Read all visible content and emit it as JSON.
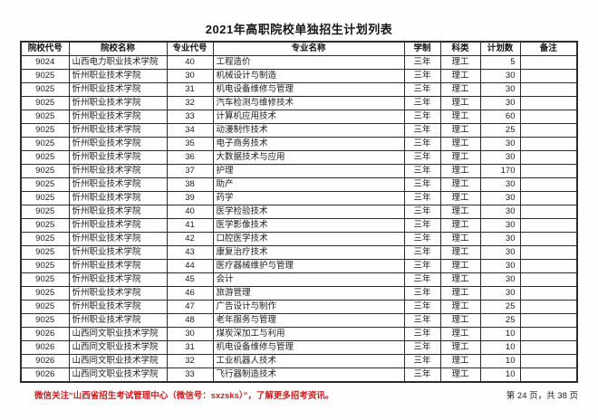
{
  "title": "2021年高职院校单独招生计划列表",
  "table": {
    "columns": [
      "院校代号",
      "院校名称",
      "专业代号",
      "专业名称",
      "学制",
      "科类",
      "计划数",
      "备注"
    ],
    "rows": [
      {
        "college_code": "9024",
        "college_name": "山西电力职业技术学院",
        "major_code": "40",
        "major_name": "工程造价",
        "duration": "三年",
        "category": "理工",
        "plan": "5",
        "remark": ""
      },
      {
        "college_code": "9025",
        "college_name": "忻州职业技术学院",
        "major_code": "30",
        "major_name": "机械设计与制造",
        "duration": "三年",
        "category": "理工",
        "plan": "30",
        "remark": ""
      },
      {
        "college_code": "9025",
        "college_name": "忻州职业技术学院",
        "major_code": "31",
        "major_name": "机电设备维修与管理",
        "duration": "三年",
        "category": "理工",
        "plan": "30",
        "remark": ""
      },
      {
        "college_code": "9025",
        "college_name": "忻州职业技术学院",
        "major_code": "32",
        "major_name": "汽车检测与维修技术",
        "duration": "三年",
        "category": "理工",
        "plan": "30",
        "remark": ""
      },
      {
        "college_code": "9025",
        "college_name": "忻州职业技术学院",
        "major_code": "33",
        "major_name": "计算机应用技术",
        "duration": "三年",
        "category": "理工",
        "plan": "60",
        "remark": ""
      },
      {
        "college_code": "9025",
        "college_name": "忻州职业技术学院",
        "major_code": "34",
        "major_name": "动漫制作技术",
        "duration": "三年",
        "category": "理工",
        "plan": "25",
        "remark": ""
      },
      {
        "college_code": "9025",
        "college_name": "忻州职业技术学院",
        "major_code": "35",
        "major_name": "电子商务技术",
        "duration": "三年",
        "category": "理工",
        "plan": "30",
        "remark": ""
      },
      {
        "college_code": "9025",
        "college_name": "忻州职业技术学院",
        "major_code": "36",
        "major_name": "大数据技术与应用",
        "duration": "三年",
        "category": "理工",
        "plan": "30",
        "remark": ""
      },
      {
        "college_code": "9025",
        "college_name": "忻州职业技术学院",
        "major_code": "37",
        "major_name": "护理",
        "duration": "三年",
        "category": "理工",
        "plan": "170",
        "remark": ""
      },
      {
        "college_code": "9025",
        "college_name": "忻州职业技术学院",
        "major_code": "38",
        "major_name": "助产",
        "duration": "三年",
        "category": "理工",
        "plan": "30",
        "remark": ""
      },
      {
        "college_code": "9025",
        "college_name": "忻州职业技术学院",
        "major_code": "39",
        "major_name": "药学",
        "duration": "三年",
        "category": "理工",
        "plan": "30",
        "remark": ""
      },
      {
        "college_code": "9025",
        "college_name": "忻州职业技术学院",
        "major_code": "40",
        "major_name": "医学检验技术",
        "duration": "三年",
        "category": "理工",
        "plan": "30",
        "remark": ""
      },
      {
        "college_code": "9025",
        "college_name": "忻州职业技术学院",
        "major_code": "41",
        "major_name": "医学影像技术",
        "duration": "三年",
        "category": "理工",
        "plan": "30",
        "remark": ""
      },
      {
        "college_code": "9025",
        "college_name": "忻州职业技术学院",
        "major_code": "42",
        "major_name": "口腔医学技术",
        "duration": "三年",
        "category": "理工",
        "plan": "30",
        "remark": ""
      },
      {
        "college_code": "9025",
        "college_name": "忻州职业技术学院",
        "major_code": "43",
        "major_name": "康复治疗技术",
        "duration": "三年",
        "category": "理工",
        "plan": "30",
        "remark": ""
      },
      {
        "college_code": "9025",
        "college_name": "忻州职业技术学院",
        "major_code": "44",
        "major_name": "医疗器械维护与管理",
        "duration": "三年",
        "category": "理工",
        "plan": "30",
        "remark": ""
      },
      {
        "college_code": "9025",
        "college_name": "忻州职业技术学院",
        "major_code": "45",
        "major_name": "会计",
        "duration": "三年",
        "category": "理工",
        "plan": "30",
        "remark": ""
      },
      {
        "college_code": "9025",
        "college_name": "忻州职业技术学院",
        "major_code": "46",
        "major_name": "旅游管理",
        "duration": "三年",
        "category": "理工",
        "plan": "30",
        "remark": ""
      },
      {
        "college_code": "9025",
        "college_name": "忻州职业技术学院",
        "major_code": "47",
        "major_name": "广告设计与制作",
        "duration": "三年",
        "category": "理工",
        "plan": "25",
        "remark": ""
      },
      {
        "college_code": "9025",
        "college_name": "忻州职业技术学院",
        "major_code": "48",
        "major_name": "老年服务与管理",
        "duration": "三年",
        "category": "理工",
        "plan": "25",
        "remark": ""
      },
      {
        "college_code": "9026",
        "college_name": "山西同文职业技术学院",
        "major_code": "30",
        "major_name": "煤炭深加工与利用",
        "duration": "三年",
        "category": "理工",
        "plan": "10",
        "remark": ""
      },
      {
        "college_code": "9026",
        "college_name": "山西同文职业技术学院",
        "major_code": "31",
        "major_name": "机电设备维修与管理",
        "duration": "三年",
        "category": "理工",
        "plan": "10",
        "remark": ""
      },
      {
        "college_code": "9026",
        "college_name": "山西同文职业技术学院",
        "major_code": "32",
        "major_name": "工业机器人技术",
        "duration": "三年",
        "category": "理工",
        "plan": "10",
        "remark": ""
      },
      {
        "college_code": "9026",
        "college_name": "山西同文职业技术学院",
        "major_code": "33",
        "major_name": "飞行器制造技术",
        "duration": "三年",
        "category": "理工",
        "plan": "10",
        "remark": ""
      }
    ]
  },
  "footer": {
    "wechat_notice": "微信关注“山西省招生考试管理中心（微信号：sxzsks）”，了解更多招考资讯。",
    "page_info": "第 24 页，共 38 页"
  },
  "colors": {
    "notice_red": "#c42323",
    "border": "#2b2b2b",
    "text": "#1c1c1c"
  }
}
